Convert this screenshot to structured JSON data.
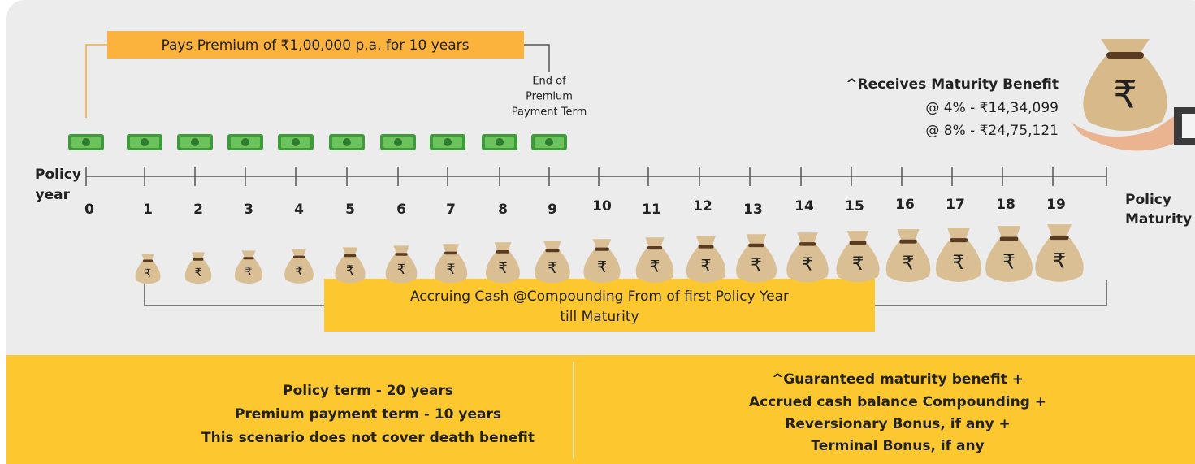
{
  "premium_label": "Pays Premium of ₹1,00,000 p.a. for 10 years",
  "end_of_term": [
    "End of",
    "Premium",
    "Payment Term"
  ],
  "maturity": {
    "title": "^Receives Maturity Benefit",
    "lines": [
      "@ 4% - ₹14,34,099",
      "@ 8% - ₹24,75,121"
    ]
  },
  "timeline": {
    "start_label": [
      "Policy",
      "year"
    ],
    "end_label": [
      "Policy",
      "Maturity"
    ],
    "years": [
      0,
      1,
      2,
      3,
      4,
      5,
      6,
      7,
      8,
      9,
      10,
      11,
      12,
      13,
      14,
      15,
      16,
      17,
      18,
      19
    ]
  },
  "accrual_label": [
    "Accruing Cash @Compounding From of first Policy Year",
    "till Maturity"
  ],
  "footer": {
    "left": [
      "Policy term - 20 years",
      "Premium payment term - 10 years",
      "This scenario does not cover death benefit"
    ],
    "right": [
      "^Guaranteed maturity benefit +",
      "Accrued cash balance Compounding +",
      "Reversionary Bonus, if any +",
      "Terminal Bonus, if any"
    ]
  }
}
